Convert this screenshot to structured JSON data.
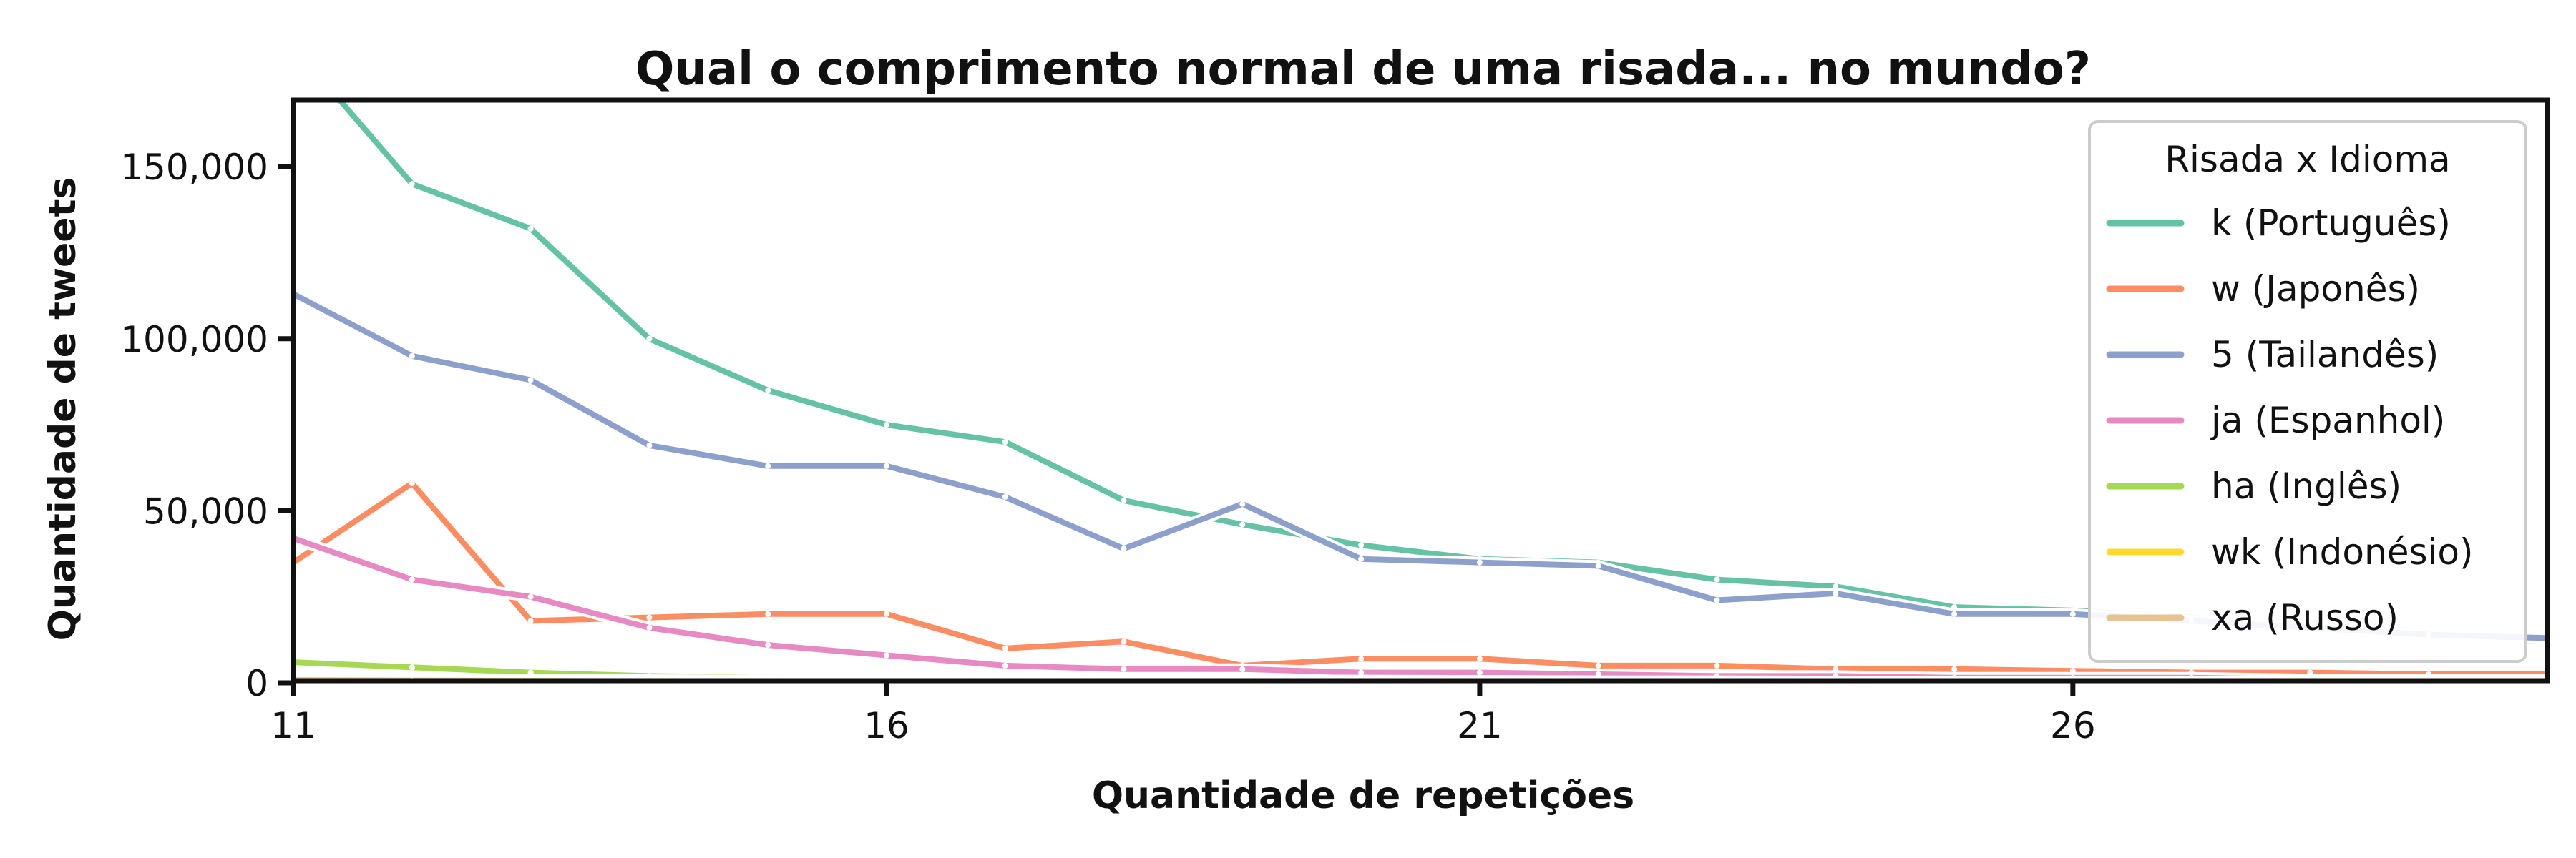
{
  "chart_data": {
    "type": "line",
    "title": "Qual o comprimento normal de uma risada... no mundo?",
    "xlabel": "Quantidade de repetições",
    "ylabel": "Quantidade de tweets",
    "xlim": [
      11,
      30
    ],
    "ylim": [
      0,
      160000
    ],
    "xticks": [
      11,
      16,
      21,
      26
    ],
    "xtick_labels": [
      "11",
      "16",
      "21",
      "26"
    ],
    "yticks": [
      0,
      50000,
      100000,
      150000
    ],
    "ytick_labels": [
      "0",
      "50,000",
      "100,000",
      "150,000"
    ],
    "grid": false,
    "legend": {
      "title": "Risada x Idioma",
      "placement": "upper-right"
    },
    "x": [
      11,
      12,
      13,
      14,
      15,
      16,
      17,
      18,
      19,
      20,
      21,
      22,
      23,
      24,
      25,
      26,
      27,
      28,
      29,
      30
    ],
    "series": [
      {
        "name": "k (Português)",
        "color": "#66c2a5",
        "values": [
          185000,
          145000,
          132000,
          100000,
          85000,
          75000,
          70000,
          53000,
          46000,
          40000,
          36000,
          35000,
          30000,
          28000,
          22000,
          21000,
          19000,
          16000,
          14000,
          12000
        ]
      },
      {
        "name": "w (Japonês)",
        "color": "#fc8d62",
        "values": [
          35000,
          58000,
          18000,
          19000,
          20000,
          20000,
          10000,
          12000,
          5000,
          7000,
          7000,
          5000,
          5000,
          4000,
          4000,
          3500,
          3000,
          3000,
          2500,
          2500
        ]
      },
      {
        "name": "5 (Tailandês)",
        "color": "#8da0cb",
        "values": [
          113000,
          95000,
          88000,
          69000,
          63000,
          63000,
          54000,
          39000,
          52000,
          36000,
          35000,
          34000,
          24000,
          26000,
          20000,
          20000,
          18000,
          16000,
          14000,
          13000
        ]
      },
      {
        "name": "ja (Espanhol)",
        "color": "#e78ac3",
        "values": [
          42000,
          30000,
          25000,
          16000,
          11000,
          8000,
          5000,
          4000,
          4000,
          3000,
          3000,
          2500,
          2000,
          2000,
          1500,
          1500,
          1500,
          1000,
          1000,
          1000
        ]
      },
      {
        "name": "ha (Inglês)",
        "color": "#a6d854",
        "values": [
          6000,
          4500,
          3000,
          2000,
          1500,
          1200,
          1000,
          900,
          800,
          700,
          600,
          500,
          500,
          400,
          400,
          300,
          300,
          300,
          200,
          200
        ]
      },
      {
        "name": "wk (Indonésio)",
        "color": "#ffd92f",
        "values": [
          1500,
          1200,
          1000,
          800,
          700,
          600,
          500,
          400,
          400,
          300,
          300,
          300,
          200,
          200,
          200,
          200,
          100,
          100,
          100,
          100
        ]
      },
      {
        "name": "xa (Russo)",
        "color": "#e5c494",
        "values": [
          800,
          700,
          600,
          500,
          400,
          400,
          300,
          300,
          300,
          200,
          200,
          200,
          200,
          100,
          100,
          100,
          100,
          100,
          100,
          100
        ]
      }
    ]
  }
}
